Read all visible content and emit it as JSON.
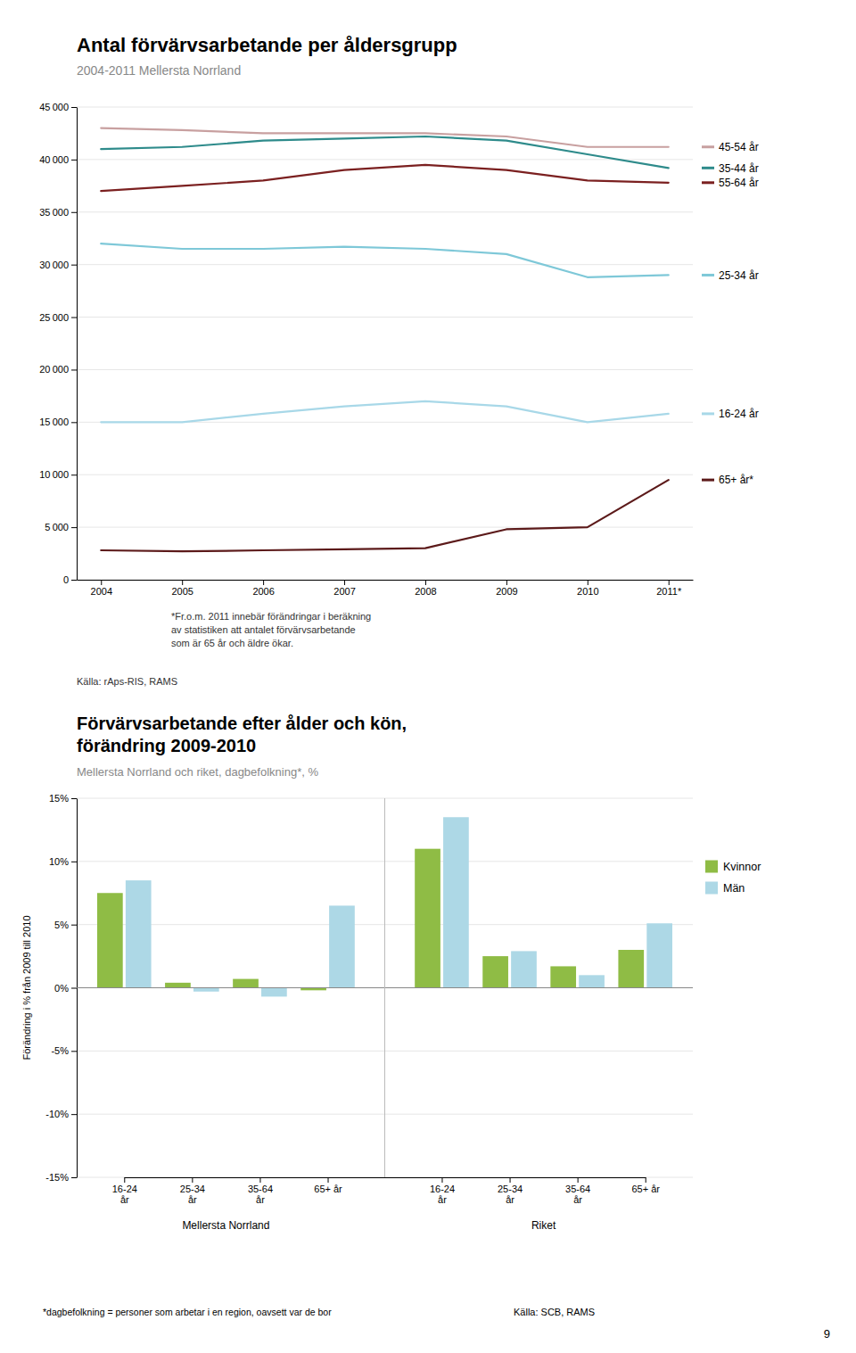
{
  "chart_data": [
    {
      "type": "line",
      "title": "Antal förvärvsarbetande per åldersgrupp",
      "subtitle": "2004-2011 Mellersta Norrland",
      "categories": [
        "2004",
        "2005",
        "2006",
        "2007",
        "2008",
        "2009",
        "2010",
        "2011*"
      ],
      "series": [
        {
          "name": "45-54 år",
          "color": "#c8a0a0",
          "values": [
            43000,
            42800,
            42500,
            42500,
            42500,
            42200,
            41200,
            41200
          ]
        },
        {
          "name": "35-44 år",
          "color": "#2e8b8b",
          "values": [
            41000,
            41200,
            41800,
            42000,
            42200,
            41800,
            40500,
            39200
          ]
        },
        {
          "name": "55-64 år",
          "color": "#7b2020",
          "values": [
            37000,
            37500,
            38000,
            39000,
            39500,
            39000,
            38000,
            37800
          ]
        },
        {
          "name": "25-34 år",
          "color": "#7ec8d8",
          "values": [
            32000,
            31500,
            31500,
            31700,
            31500,
            31000,
            28800,
            29000
          ]
        },
        {
          "name": "16-24 år",
          "color": "#a8d8e8",
          "values": [
            15000,
            15000,
            15800,
            16500,
            17000,
            16500,
            15000,
            15800
          ]
        },
        {
          "name": "65+ år*",
          "color": "#5c1a1a",
          "values": [
            2800,
            2700,
            2800,
            2900,
            3000,
            4800,
            5000,
            9500
          ]
        }
      ],
      "ylim": [
        0,
        45000
      ],
      "yticks": [
        0,
        {
          "value": 5000,
          "label": "5 000"
        },
        {
          "value": 10000,
          "label": "10 000"
        },
        {
          "value": 15000,
          "label": "15 000"
        },
        {
          "value": 20000,
          "label": "20 000"
        },
        {
          "value": 25000,
          "label": "25 000"
        },
        {
          "value": 30000,
          "label": "30 000"
        },
        {
          "value": 35000,
          "label": "35 000"
        },
        {
          "value": 40000,
          "label": "40 000"
        },
        {
          "value": 45000,
          "label": "45 000"
        }
      ],
      "grid": true,
      "legend": "right",
      "annotations": [
        "*Fr.o.m. 2011 innebär förändringar i beräkning\nav statistiken att antalet förvärvsarbetande\nsom är 65 år och äldre ökar.",
        "Källa: rAps-RIS, RAMS"
      ]
    },
    {
      "type": "bar",
      "title": "Förvärvsarbetande efter ålder och kön,\nförändring 2009-2010",
      "subtitle": "Mellersta Norrland och riket, dagbefolkning*, %",
      "categories": [
        "16-24\når",
        "25-34\når",
        "35-64\når",
        "65+ år",
        "16-24\når",
        "25-34\når",
        "35-64\når",
        "65+ år"
      ],
      "groups": [
        "Mellersta Norrland",
        "Riket"
      ],
      "series": [
        {
          "name": "Kvinnor",
          "color": "#8fbc45",
          "values": [
            7.5,
            0.4,
            0.7,
            -0.2,
            11.0,
            2.5,
            1.7,
            3.0
          ]
        },
        {
          "name": "Män",
          "color": "#add8e6",
          "values": [
            8.5,
            -0.3,
            -0.7,
            6.5,
            13.5,
            2.9,
            1.0,
            5.1
          ]
        }
      ],
      "ylim": [
        -15,
        15
      ],
      "yticks": [
        {
          "value": -15,
          "label": "-15%"
        },
        {
          "value": -10,
          "label": "-10%"
        },
        {
          "value": -5,
          "label": "-5%"
        },
        {
          "value": 0,
          "label": "0%"
        },
        {
          "value": 5,
          "label": "5%"
        },
        {
          "value": 10,
          "label": "10%"
        },
        {
          "value": 15,
          "label": "15%"
        }
      ],
      "ylabel": "Förändring i % från 2009 till 2010",
      "grid": true,
      "legend": "right",
      "annotations": [
        "*dagbefolkning = personer som arbetar i en region, oavsett var de bor",
        "Källa: SCB, RAMS",
        "9"
      ]
    }
  ]
}
